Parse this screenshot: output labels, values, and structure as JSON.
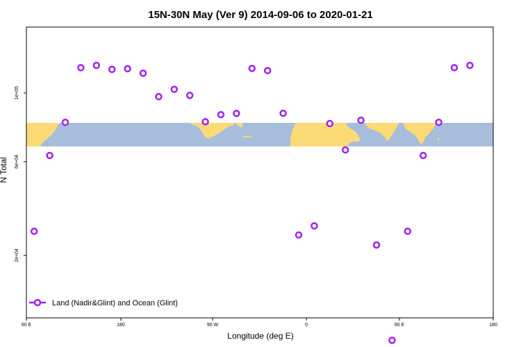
{
  "chart_data": {
    "type": "scatter",
    "title": "15N-30N May (Ver 9)   2014-09-06 to 2020-01-21",
    "xlabel": "Longitude (deg E)",
    "ylabel": "N Total",
    "x_tick_labels": [
      "90 E",
      "180",
      "90 W",
      "0",
      "90 E",
      "180"
    ],
    "y_tick_labels": [
      "2e+04",
      "6e+04",
      "1e+05"
    ],
    "legend": {
      "label": "Land (Nadir&Glint) and Ocean (Glint)",
      "placement": "bottom-left"
    },
    "map_strip": {
      "lat_range": "15N-30N",
      "ocean_color": "#A7BDDC",
      "land_color": "#FCDA75"
    },
    "colors": {
      "marker": "#A020F0",
      "background": "#FFFFFF"
    },
    "grid": false,
    "series": [
      {
        "name": "Land (Nadir&Glint) and Ocean (Glint)",
        "points": [
          {
            "lon": 97.5,
            "n": 28000
          },
          {
            "lon": 112.5,
            "n": 62000
          },
          {
            "lon": 127.5,
            "n": 81000
          },
          {
            "lon": 142.5,
            "n": 118000
          },
          {
            "lon": 157.5,
            "n": 119700
          },
          {
            "lon": 172.5,
            "n": 116700
          },
          {
            "lon": 187.5,
            "n": 117200
          },
          {
            "lon": 202.5,
            "n": 113900
          },
          {
            "lon": 217.5,
            "n": 97500
          },
          {
            "lon": 232.5,
            "n": 102500
          },
          {
            "lon": 247.5,
            "n": 98400
          },
          {
            "lon": 262.5,
            "n": 81400
          },
          {
            "lon": 277.5,
            "n": 85800
          },
          {
            "lon": 292.5,
            "n": 86600
          },
          {
            "lon": 307.5,
            "n": 117400
          },
          {
            "lon": 322.5,
            "n": 115800
          },
          {
            "lon": 337.5,
            "n": 86700
          },
          {
            "lon": 352.5,
            "n": 26700
          },
          {
            "lon": 367.5,
            "n": 30000
          },
          {
            "lon": 382.5,
            "n": 80300
          },
          {
            "lon": 397.5,
            "n": 65000
          },
          {
            "lon": 412.5,
            "n": 82300
          },
          {
            "lon": 427.5,
            "n": 23300
          },
          {
            "lon": 442.5,
            "n": 2500
          },
          {
            "lon": 457.5,
            "n": 28000
          },
          {
            "lon": 472.5,
            "n": 62000
          },
          {
            "lon": 487.5,
            "n": 81000
          },
          {
            "lon": 502.5,
            "n": 118000
          },
          {
            "lon": 517.5,
            "n": 119700
          }
        ]
      }
    ]
  }
}
